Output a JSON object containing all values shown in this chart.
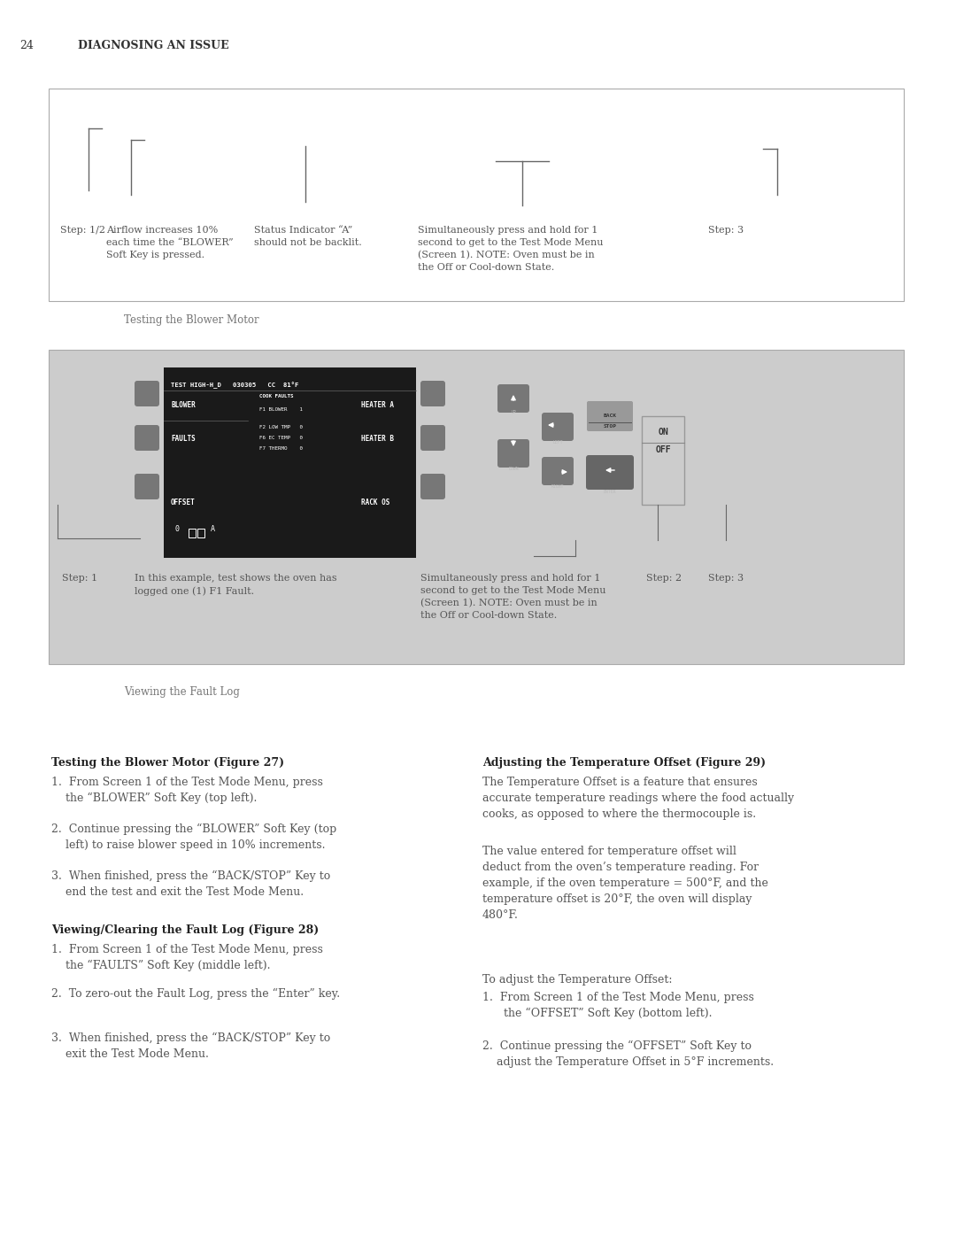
{
  "page_number": "24",
  "page_header": "DIAGNOSING AN ISSUE",
  "bg_color": "#ffffff",
  "fig1_caption": "Testing the Blower Motor",
  "fig2_caption": "Viewing the Fault Log",
  "section1_title": "Testing the Blower Motor (Figure 27)",
  "section2_title": "Viewing/Clearing the Fault Log (Figure 28)",
  "section3_title": "Adjusting the Temperature Offset (Figure 29)",
  "section3_para1": "The Temperature Offset is a feature that ensures\naccurate temperature readings where the food actually\ncooks, as opposed to where the thermocouple is.",
  "section3_para2": "The value entered for temperature offset will\ndeduct from the oven’s temperature reading. For\nexample, if the oven temperature = 500°F, and the\ntemperature offset is 20°F, the oven will display\n480°F.",
  "section3_para3": "To adjust the Temperature Offset:",
  "panel_bg": "#cccccc",
  "screen_bg": "#1a1a1a",
  "btn_color": "#777777",
  "text_dark": "#222222",
  "text_body": "#555555"
}
